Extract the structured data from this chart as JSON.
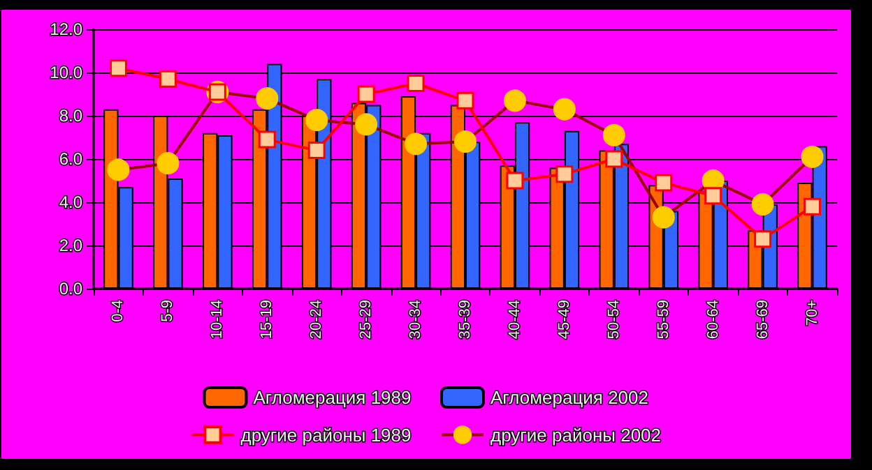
{
  "chart_data": {
    "type": "bar",
    "categories": [
      "0-4",
      "5-9",
      "10-14",
      "15-19",
      "20-24",
      "25-29",
      "30-34",
      "35-39",
      "40-44",
      "45-49",
      "50-54",
      "55-59",
      "60-64",
      "65-69",
      "70+"
    ],
    "series": [
      {
        "name": "Агломерация 1989",
        "color": "#ff6600",
        "values": [
          8.3,
          8.0,
          7.2,
          8.3,
          8.0,
          8.6,
          8.9,
          8.5,
          5.7,
          5.6,
          6.4,
          4.8,
          4.5,
          2.7,
          4.9
        ]
      },
      {
        "name": "Агломерация 2002",
        "color": "#3366ff",
        "values": [
          4.7,
          5.1,
          7.1,
          10.4,
          9.7,
          8.5,
          7.2,
          6.8,
          7.7,
          7.3,
          6.7,
          3.6,
          5.0,
          3.9,
          6.6
        ]
      },
      {
        "name": "другие районы 1989",
        "type": "line",
        "marker": "square",
        "color": "#ff0000",
        "values": [
          10.2,
          9.7,
          9.1,
          6.9,
          6.4,
          9.0,
          9.5,
          8.7,
          5.0,
          5.3,
          6.0,
          4.9,
          4.3,
          2.3,
          3.8
        ]
      },
      {
        "name": "другие районы 2002",
        "type": "line",
        "marker": "circle",
        "color": "#990000",
        "values": [
          5.5,
          5.8,
          9.1,
          8.8,
          7.8,
          7.6,
          6.7,
          6.8,
          8.7,
          8.3,
          7.1,
          3.3,
          5.0,
          3.9,
          6.1
        ]
      }
    ],
    "ylim": [
      0,
      12
    ],
    "yticks": [
      {
        "value": 0,
        "label": "0.0"
      },
      {
        "value": 2,
        "label": "2.0"
      },
      {
        "value": 4,
        "label": "4.0"
      },
      {
        "value": 6,
        "label": "6.0"
      },
      {
        "value": 8,
        "label": "8.0"
      },
      {
        "value": 10,
        "label": "10.0"
      },
      {
        "value": 12,
        "label": "12.0"
      }
    ],
    "grid": "y",
    "legend": "bottom"
  }
}
